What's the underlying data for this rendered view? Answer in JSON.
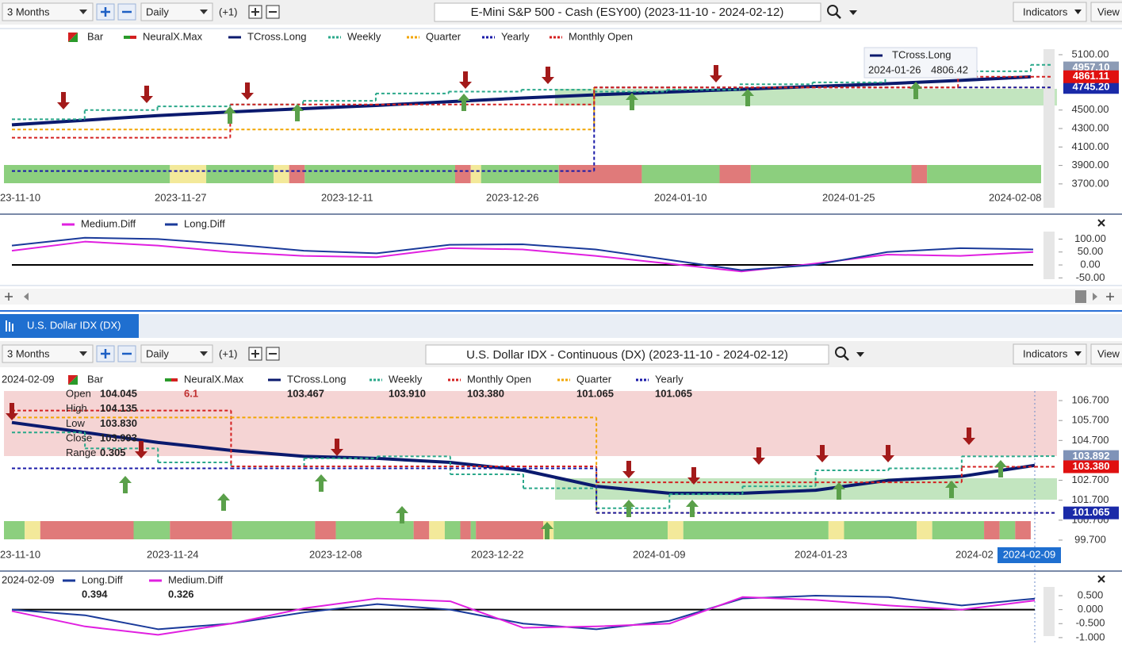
{
  "toolbar_top": {
    "range": "3 Months",
    "interval": "Daily",
    "offset": "(+1)",
    "title": "E-Mini S&P 500 - Cash (ESY00) (2023-11-10 - 2024-02-12)",
    "indicators": "Indicators",
    "view": "View"
  },
  "price_chart_top": {
    "legend_extra": [
      {
        "name": "Bar"
      },
      {
        "name": "NeuralX.Max"
      }
    ],
    "series": [
      {
        "name": "TCross.Long",
        "color": "#0b1a6e",
        "values": [
          4340,
          4390,
          4440,
          4480,
          4515,
          4550,
          4590,
          4630,
          4665,
          4695,
          4725,
          4755,
          4785,
          4820,
          4860
        ]
      },
      {
        "name": "Weekly",
        "color": "#2aa88a",
        "values": [
          4400,
          4500,
          4540,
          4560,
          4600,
          4680,
          4700,
          4720,
          4700,
          4720,
          4780,
          4800,
          4870,
          4920,
          4990
        ]
      },
      {
        "name": "Quarter",
        "color": "#f2a500",
        "values": [
          4290,
          4290,
          4290,
          4290,
          4290,
          4290,
          4290,
          4290,
          4745,
          4745,
          4745,
          4745,
          4745,
          4745,
          4745
        ]
      },
      {
        "name": "Yearly",
        "color": "#1a1aa8",
        "values": [
          3840,
          3840,
          3840,
          3840,
          3840,
          3840,
          3840,
          3840,
          4745,
          4745,
          4745,
          4745,
          4745,
          4745,
          4745
        ]
      },
      {
        "name": "Monthly Open",
        "color": "#d42020",
        "values": [
          4200,
          4200,
          4200,
          4560,
          4560,
          4560,
          4560,
          4560,
          4745,
          4745,
          4745,
          4745,
          4745,
          4861,
          4861
        ]
      }
    ],
    "ylim": [
      3630,
      5220
    ],
    "yticks": [
      {
        "value": 3700,
        "label": "3700.00"
      },
      {
        "value": 3900,
        "label": "3900.00"
      },
      {
        "value": 4100,
        "label": "4100.00"
      },
      {
        "value": 4300,
        "label": "4300.00"
      },
      {
        "value": 4500,
        "label": "4500.00"
      },
      {
        "value": 5100,
        "label": "5100.00"
      }
    ],
    "xticks": [
      "23-11-10",
      "2023-11-27",
      "2023-12-11",
      "2023-12-26",
      "2024-01-10",
      "2024-01-25",
      "2024-02-08"
    ],
    "price_labels": [
      {
        "value": 4957.1,
        "label": "4957.10",
        "color": "#8c9bb5"
      },
      {
        "value": 4745.2,
        "label": "4745.20",
        "color": "#1a2aa8"
      },
      {
        "value": 4861.11,
        "label": "4861.11",
        "color": "#e01010"
      }
    ],
    "tooltip": {
      "name": "TCross.Long",
      "date": "2024-01-26",
      "value": "4806.42"
    }
  },
  "indicator_top": {
    "series": [
      {
        "name": "Medium.Diff",
        "color": "#e020e0",
        "values": [
          55,
          90,
          75,
          50,
          35,
          30,
          65,
          60,
          35,
          5,
          -25,
          5,
          40,
          35,
          50
        ]
      },
      {
        "name": "Long.Diff",
        "color": "#1a3a9a",
        "values": [
          75,
          105,
          100,
          80,
          55,
          45,
          78,
          80,
          60,
          20,
          -20,
          0,
          50,
          65,
          60
        ]
      }
    ],
    "ylim": [
      -55,
      135
    ],
    "yticks": [
      {
        "value": 100,
        "label": "100.00"
      },
      {
        "value": 50,
        "label": "50.00"
      },
      {
        "value": 0,
        "label": "0.00"
      },
      {
        "value": -50,
        "label": "-50.00"
      }
    ]
  },
  "tab": "U.S. Dollar IDX (DX)",
  "toolbar_bottom": {
    "range": "3 Months",
    "interval": "Daily",
    "offset": "(+1)",
    "title": "U.S. Dollar IDX - Continuous (DX) (2023-11-10 - 2024-02-12)",
    "indicators": "Indicators",
    "view": "View"
  },
  "price_chart_bottom": {
    "date": "2024-02-09",
    "legend_extra": [
      {
        "name": "Bar"
      },
      {
        "name": "NeuralX.Max",
        "readout": "6.1"
      }
    ],
    "series": [
      {
        "name": "TCross.Long",
        "color": "#0b1a6e",
        "readout": "103.467",
        "values": [
          105.6,
          105.1,
          104.6,
          104.2,
          103.9,
          103.8,
          103.6,
          103.2,
          102.4,
          102.05,
          102.05,
          102.2,
          102.7,
          102.9,
          103.45
        ]
      },
      {
        "name": "Weekly",
        "color": "#2aa88a",
        "readout": "103.910",
        "values": [
          105.1,
          104.3,
          103.6,
          103.4,
          103.8,
          103.9,
          103.0,
          102.3,
          101.3,
          102.0,
          102.4,
          103.2,
          103.3,
          103.9,
          103.91
        ]
      },
      {
        "name": "Monthly Open",
        "color": "#d42020",
        "readout": "103.380",
        "values": [
          106.2,
          106.2,
          106.2,
          103.4,
          103.4,
          103.4,
          103.4,
          103.4,
          102.6,
          102.6,
          102.6,
          102.6,
          102.6,
          103.38,
          103.38
        ]
      },
      {
        "name": "Quarter",
        "color": "#f2a500",
        "readout": "101.065",
        "values": [
          105.85,
          105.85,
          105.85,
          105.85,
          105.85,
          105.85,
          105.85,
          105.85,
          101.065,
          101.065,
          101.065,
          101.065,
          101.065,
          101.065,
          101.065
        ]
      },
      {
        "name": "Yearly",
        "color": "#1a1aa8",
        "readout": "101.065",
        "values": [
          103.3,
          103.3,
          103.3,
          103.3,
          103.3,
          103.3,
          103.3,
          103.3,
          101.065,
          101.065,
          101.065,
          101.065,
          101.065,
          101.065,
          101.065
        ]
      }
    ],
    "ohlc": [
      {
        "label": "Open",
        "value": "104.045"
      },
      {
        "label": "High",
        "value": "104.135"
      },
      {
        "label": "Low",
        "value": "103.830"
      },
      {
        "label": "Close",
        "value": "103.993"
      },
      {
        "label": "Range",
        "value": "0.305"
      }
    ],
    "ylim": [
      99.42,
      107.18
    ],
    "yticks": [
      {
        "value": 99.7,
        "label": "99.700"
      },
      {
        "value": 100.7,
        "label": "100.700"
      },
      {
        "value": 101.7,
        "label": "101.700"
      },
      {
        "value": 102.7,
        "label": "102.700"
      },
      {
        "value": 104.7,
        "label": "104.700"
      },
      {
        "value": 105.7,
        "label": "105.700"
      },
      {
        "value": 106.7,
        "label": "106.700"
      }
    ],
    "xticks": [
      "23-11-10",
      "2023-11-24",
      "2023-12-08",
      "2023-12-22",
      "2024-01-09",
      "2024-01-23",
      "2024-02"
    ],
    "cursor_label": "2024-02-09",
    "price_labels": [
      {
        "value": 103.892,
        "label": "103.892",
        "color": "#7f93b8"
      },
      {
        "value": 103.38,
        "label": "103.380",
        "color": "#e01010"
      },
      {
        "value": 101.065,
        "label": "101.065",
        "color": "#1a2aa8"
      }
    ]
  },
  "indicator_bottom": {
    "date": "2024-02-09",
    "series": [
      {
        "name": "Long.Diff",
        "color": "#1a3a9a",
        "readout": "0.394",
        "values": [
          0.0,
          -0.2,
          -0.7,
          -0.5,
          -0.1,
          0.2,
          0.0,
          -0.5,
          -0.7,
          -0.4,
          0.4,
          0.5,
          0.45,
          0.15,
          0.394
        ]
      },
      {
        "name": "Medium.Diff",
        "color": "#e020e0",
        "readout": "0.326",
        "values": [
          -0.05,
          -0.6,
          -0.9,
          -0.5,
          0.05,
          0.4,
          0.3,
          -0.65,
          -0.6,
          -0.5,
          0.45,
          0.35,
          0.15,
          0.0,
          0.326
        ]
      }
    ],
    "ylim": [
      -1.23,
      0.87
    ],
    "yticks": [
      {
        "value": 0.5,
        "label": "0.500"
      },
      {
        "value": 0,
        "label": "0.000"
      },
      {
        "value": -0.5,
        "label": "-0.500"
      },
      {
        "value": -1,
        "label": "-1.000"
      }
    ]
  }
}
